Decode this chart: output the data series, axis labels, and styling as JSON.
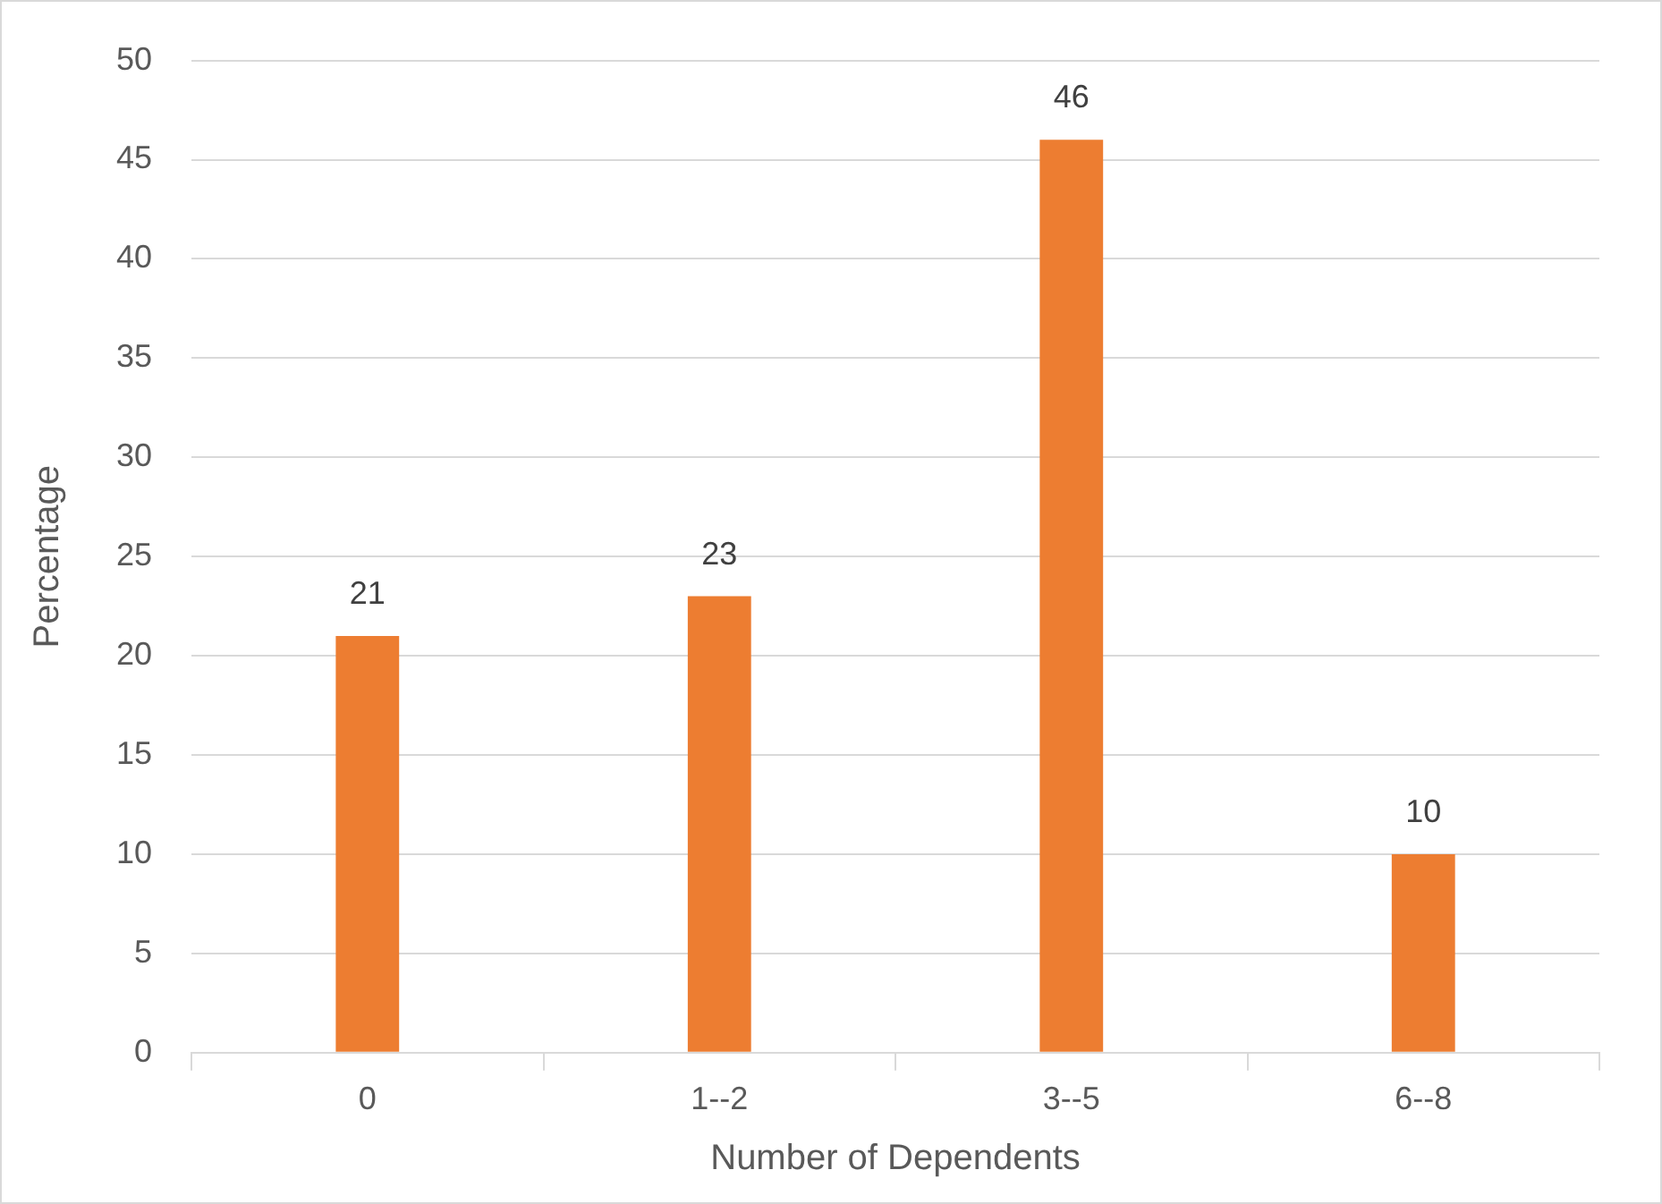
{
  "chart_data": {
    "type": "bar",
    "xlabel": "Number of Dependents",
    "ylabel": "Percentage",
    "categories": [
      "0",
      "1--2",
      "3--5",
      "6--8"
    ],
    "values": [
      21,
      23,
      46,
      10
    ],
    "color": "#ed7d31",
    "ylim": [
      0,
      50
    ],
    "yticks": [
      0,
      5,
      10,
      15,
      20,
      25,
      30,
      35,
      40,
      45,
      50
    ],
    "grid": "y",
    "data_labels": true,
    "legend": false
  }
}
